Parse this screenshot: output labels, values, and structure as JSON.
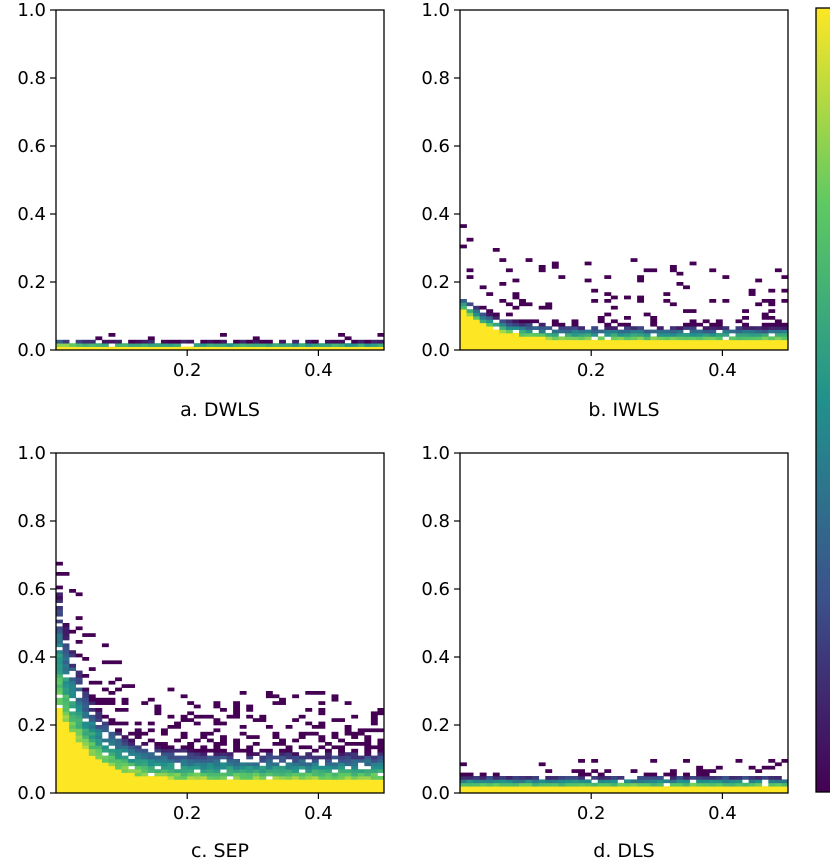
{
  "chart_data": [
    {
      "type": "heatmap",
      "title": "a. DWLS",
      "xlabel": "",
      "ylabel": "",
      "xlim": [
        0,
        0.5
      ],
      "ylim": [
        0,
        1.0
      ],
      "x_ticks": [
        {
          "value": 0.2,
          "label": "0.2"
        },
        {
          "value": 0.4,
          "label": "0.4"
        }
      ],
      "y_ticks": [
        {
          "value": 0.0,
          "label": "0.0"
        },
        {
          "value": 0.2,
          "label": "0.2"
        },
        {
          "value": 0.4,
          "label": "0.4"
        },
        {
          "value": 0.6,
          "label": "0.6"
        },
        {
          "value": 0.8,
          "label": "0.8"
        },
        {
          "value": 1.0,
          "label": "1.0"
        }
      ],
      "bins": {
        "x_count": 50,
        "y_count": 100,
        "x_range": [
          0,
          0.5
        ],
        "y_range": [
          0,
          1.0
        ]
      },
      "density_profile": {
        "core_max": 0.015,
        "core_limit": 0.01,
        "spread_max": 0.03,
        "spread_limit": 0.025,
        "scatter_max": 0.045,
        "scatter_limit": 0.045,
        "scatter_count": 18,
        "seed": 11
      }
    },
    {
      "type": "heatmap",
      "title": "b. IWLS",
      "xlabel": "",
      "ylabel": "",
      "xlim": [
        0,
        0.5
      ],
      "ylim": [
        0,
        1.0
      ],
      "x_ticks": [
        {
          "value": 0.2,
          "label": "0.2"
        },
        {
          "value": 0.4,
          "label": "0.4"
        }
      ],
      "y_ticks": [
        {
          "value": 0.0,
          "label": "0.0"
        },
        {
          "value": 0.2,
          "label": "0.2"
        },
        {
          "value": 0.4,
          "label": "0.4"
        },
        {
          "value": 0.6,
          "label": "0.6"
        },
        {
          "value": 0.8,
          "label": "0.8"
        },
        {
          "value": 1.0,
          "label": "1.0"
        }
      ],
      "bins": {
        "x_count": 50,
        "y_count": 100,
        "x_range": [
          0,
          0.5
        ],
        "y_range": [
          0,
          1.0
        ]
      },
      "density_profile": {
        "core_max": 0.13,
        "core_limit": 0.03,
        "spread_max": 0.17,
        "spread_limit": 0.07,
        "scatter_max": 0.43,
        "scatter_limit": 0.26,
        "scatter_count": 130,
        "seed": 23
      }
    },
    {
      "type": "heatmap",
      "title": "c. SEP",
      "xlabel": "",
      "ylabel": "",
      "xlim": [
        0,
        0.5
      ],
      "ylim": [
        0,
        1.0
      ],
      "x_ticks": [
        {
          "value": 0.2,
          "label": "0.2"
        },
        {
          "value": 0.4,
          "label": "0.4"
        }
      ],
      "y_ticks": [
        {
          "value": 0.0,
          "label": "0.0"
        },
        {
          "value": 0.2,
          "label": "0.2"
        },
        {
          "value": 0.4,
          "label": "0.4"
        },
        {
          "value": 0.6,
          "label": "0.6"
        },
        {
          "value": 0.8,
          "label": "0.8"
        },
        {
          "value": 1.0,
          "label": "1.0"
        }
      ],
      "bins": {
        "x_count": 50,
        "y_count": 100,
        "x_range": [
          0,
          0.5
        ],
        "y_range": [
          0,
          1.0
        ]
      },
      "density_profile": {
        "core_max": 0.28,
        "core_limit": 0.04,
        "spread_max": 0.65,
        "spread_limit": 0.12,
        "scatter_max": 0.98,
        "scatter_limit": 0.3,
        "scatter_count": 260,
        "seed": 37
      }
    },
    {
      "type": "heatmap",
      "title": "d. DLS",
      "xlabel": "",
      "ylabel": "",
      "xlim": [
        0,
        0.5
      ],
      "ylim": [
        0,
        1.0
      ],
      "x_ticks": [
        {
          "value": 0.2,
          "label": "0.2"
        },
        {
          "value": 0.4,
          "label": "0.4"
        }
      ],
      "y_ticks": [
        {
          "value": 0.0,
          "label": "0.0"
        },
        {
          "value": 0.2,
          "label": "0.2"
        },
        {
          "value": 0.4,
          "label": "0.4"
        },
        {
          "value": 0.6,
          "label": "0.6"
        },
        {
          "value": 0.8,
          "label": "0.8"
        },
        {
          "value": 1.0,
          "label": "1.0"
        }
      ],
      "bins": {
        "x_count": 50,
        "y_count": 100,
        "x_range": [
          0,
          0.5
        ],
        "y_range": [
          0,
          1.0
        ]
      },
      "density_profile": {
        "core_max": 0.02,
        "core_limit": 0.02,
        "spread_max": 0.05,
        "spread_limit": 0.05,
        "scatter_max": 0.1,
        "scatter_limit": 0.1,
        "scatter_count": 45,
        "seed": 59
      }
    }
  ],
  "colorbar": {
    "colormap": "viridis",
    "colors": [
      "#440154",
      "#3b528b",
      "#21918c",
      "#5ec962",
      "#fde725"
    ],
    "tick_labels": []
  },
  "colors": {
    "background": "#ffffff",
    "axes": "#000000"
  }
}
